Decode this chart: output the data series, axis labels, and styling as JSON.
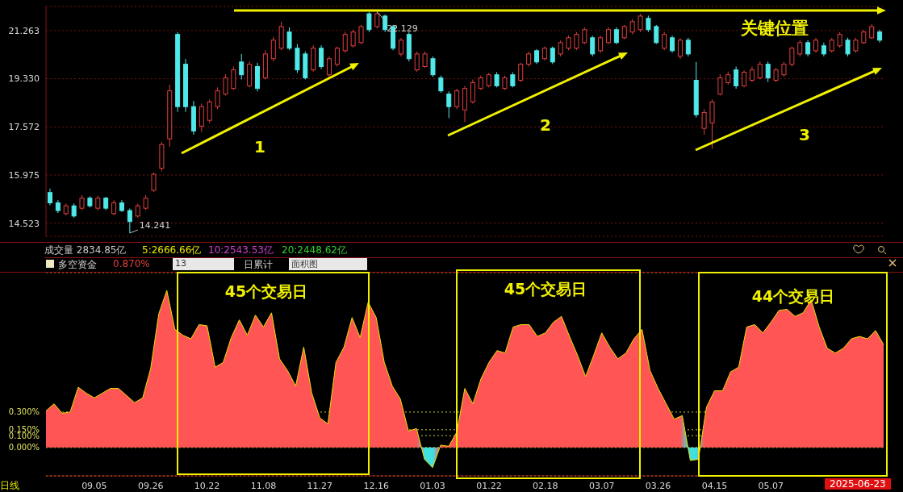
{
  "chart_data": [
    {
      "type": "candlestick",
      "log": true,
      "grid": "y",
      "tick_labels": "y",
      "ylim": [
        14.15,
        22.3
      ],
      "yticks": [
        14.523,
        15.975,
        17.572,
        {
          "value": 19.33,
          "label": "19.330"
        },
        21.263
      ],
      "categories": [
        null,
        null,
        null,
        null,
        null,
        null,
        null,
        null,
        null,
        null,
        null,
        null,
        null,
        null,
        null,
        null,
        null,
        null,
        null,
        null,
        null,
        null,
        null,
        null,
        null,
        null,
        null,
        null,
        null,
        null,
        null,
        null,
        null,
        null,
        null,
        null,
        null,
        null,
        null,
        null,
        null,
        null,
        null,
        null,
        null,
        null,
        null,
        null,
        null,
        null,
        null,
        null,
        null,
        null,
        null,
        null,
        null,
        null,
        null,
        null,
        null,
        null,
        null,
        null,
        null,
        null,
        null,
        null,
        null,
        null,
        null,
        null,
        null,
        null,
        null,
        null,
        null,
        null,
        null,
        null,
        null,
        null,
        null,
        null,
        null,
        null,
        null,
        null,
        null,
        null,
        null,
        null,
        null,
        null,
        null,
        null,
        null,
        null,
        null,
        null,
        null,
        null,
        null,
        null,
        null
      ],
      "ohlc": [
        [
          15.43,
          15.55,
          15.05,
          15.12
        ],
        [
          15.12,
          15.2,
          14.82,
          14.89
        ],
        [
          14.8,
          15.1,
          14.75,
          15.03
        ],
        [
          15.03,
          15.1,
          14.68,
          14.73
        ],
        [
          14.96,
          15.35,
          14.9,
          15.26
        ],
        [
          15.26,
          15.32,
          14.98,
          15.03
        ],
        [
          14.96,
          15.33,
          14.9,
          15.26
        ],
        [
          15.26,
          15.3,
          14.9,
          14.96
        ],
        [
          14.8,
          15.2,
          14.75,
          15.12
        ],
        [
          15.12,
          15.2,
          14.85,
          14.89
        ],
        [
          14.89,
          14.95,
          14.241,
          14.57
        ],
        [
          14.73,
          15.1,
          14.68,
          15.03
        ],
        [
          14.96,
          15.35,
          14.9,
          15.26
        ],
        [
          15.5,
          16.05,
          15.45,
          16.0
        ],
        [
          16.19,
          17.05,
          16.1,
          16.97
        ],
        [
          17.16,
          19.1,
          16.9,
          18.87
        ],
        [
          21.1,
          21.2,
          18.1,
          18.29
        ],
        [
          19.89,
          20.1,
          18.1,
          18.29
        ],
        [
          18.29,
          18.5,
          17.3,
          17.43
        ],
        [
          17.6,
          18.4,
          17.4,
          18.29
        ],
        [
          17.8,
          18.55,
          17.7,
          18.46
        ],
        [
          18.29,
          19.0,
          18.2,
          18.87
        ],
        [
          18.75,
          19.5,
          18.7,
          19.36
        ],
        [
          18.96,
          19.8,
          18.9,
          19.67
        ],
        [
          19.98,
          20.3,
          19.3,
          19.48
        ],
        [
          19.06,
          20.0,
          19.0,
          19.89
        ],
        [
          19.8,
          19.95,
          18.85,
          18.96
        ],
        [
          19.36,
          20.45,
          19.3,
          20.3
        ],
        [
          20.11,
          21.0,
          20.0,
          20.86
        ],
        [
          20.53,
          21.64,
          20.45,
          21.43
        ],
        [
          21.2,
          21.4,
          20.45,
          20.53
        ],
        [
          20.53,
          20.7,
          19.55,
          19.67
        ],
        [
          20.3,
          20.4,
          19.3,
          19.36
        ],
        [
          19.67,
          20.65,
          19.6,
          20.53
        ],
        [
          20.53,
          20.65,
          19.7,
          19.8
        ],
        [
          19.48,
          20.2,
          19.35,
          20.11
        ],
        [
          19.89,
          20.6,
          19.8,
          20.53
        ],
        [
          20.43,
          21.2,
          20.35,
          21.1
        ],
        [
          20.63,
          21.3,
          20.55,
          21.2
        ],
        [
          20.76,
          21.5,
          20.7,
          21.43
        ],
        [
          21.98,
          22.05,
          21.2,
          21.3
        ],
        [
          21.43,
          22.129,
          21.35,
          21.98
        ],
        [
          21.88,
          21.95,
          21.2,
          21.3
        ],
        [
          21.43,
          21.5,
          20.45,
          20.53
        ],
        [
          20.3,
          20.95,
          20.2,
          20.86
        ],
        [
          21.1,
          21.2,
          20.0,
          20.11
        ],
        [
          19.67,
          20.4,
          19.6,
          20.3
        ],
        [
          19.8,
          20.4,
          19.75,
          20.3
        ],
        [
          20.11,
          20.2,
          19.4,
          19.48
        ],
        [
          19.36,
          19.45,
          18.8,
          18.87
        ],
        [
          18.75,
          18.85,
          17.88,
          18.29
        ],
        [
          18.29,
          18.95,
          18.2,
          18.87
        ],
        [
          18.17,
          19.05,
          17.74,
          18.96
        ],
        [
          18.46,
          19.3,
          18.4,
          19.18
        ],
        [
          18.96,
          19.45,
          18.9,
          19.36
        ],
        [
          19.06,
          19.55,
          19.0,
          19.48
        ],
        [
          19.48,
          19.58,
          19.0,
          19.06
        ],
        [
          18.96,
          19.45,
          18.9,
          19.36
        ],
        [
          19.48,
          19.58,
          19.0,
          19.06
        ],
        [
          19.27,
          19.95,
          19.2,
          19.89
        ],
        [
          19.89,
          20.4,
          19.8,
          20.3
        ],
        [
          20.43,
          20.5,
          19.9,
          19.98
        ],
        [
          20.11,
          20.6,
          20.05,
          20.53
        ],
        [
          20.53,
          20.6,
          19.9,
          19.98
        ],
        [
          20.3,
          20.85,
          20.2,
          20.76
        ],
        [
          20.53,
          21.05,
          20.45,
          20.96
        ],
        [
          20.53,
          21.2,
          20.45,
          21.1
        ],
        [
          20.76,
          21.4,
          20.7,
          21.3
        ],
        [
          20.96,
          21.05,
          20.2,
          20.3
        ],
        [
          20.43,
          21.05,
          20.35,
          20.96
        ],
        [
          20.76,
          21.4,
          20.7,
          21.3
        ],
        [
          21.3,
          21.4,
          20.7,
          20.76
        ],
        [
          20.96,
          21.5,
          20.9,
          21.43
        ],
        [
          21.2,
          21.75,
          21.1,
          21.64
        ],
        [
          21.3,
          21.98,
          21.2,
          21.88
        ],
        [
          21.78,
          21.9,
          21.2,
          21.3
        ],
        [
          21.43,
          21.5,
          20.7,
          20.76
        ],
        [
          20.53,
          21.2,
          20.45,
          21.1
        ],
        [
          20.96,
          21.05,
          20.35,
          20.43
        ],
        [
          20.21,
          20.95,
          20.1,
          20.86
        ],
        [
          20.86,
          20.96,
          20.2,
          20.3
        ],
        [
          19.27,
          19.98,
          17.9,
          18.0
        ],
        [
          17.52,
          18.2,
          17.3,
          18.08
        ],
        [
          17.71,
          18.55,
          16.83,
          18.46
        ],
        [
          18.75,
          19.5,
          18.7,
          19.36
        ],
        [
          19.18,
          19.6,
          19.1,
          19.48
        ],
        [
          19.67,
          19.8,
          18.95,
          19.06
        ],
        [
          19.06,
          19.65,
          19.0,
          19.58
        ],
        [
          19.27,
          19.8,
          19.2,
          19.67
        ],
        [
          19.36,
          20.0,
          19.3,
          19.89
        ],
        [
          19.89,
          20.0,
          19.2,
          19.36
        ],
        [
          19.27,
          19.75,
          19.2,
          19.67
        ],
        [
          19.48,
          19.98,
          19.4,
          19.89
        ],
        [
          19.89,
          20.6,
          19.8,
          20.53
        ],
        [
          20.3,
          20.86,
          20.2,
          20.76
        ],
        [
          20.76,
          20.86,
          20.2,
          20.3
        ],
        [
          20.43,
          20.96,
          20.35,
          20.86
        ],
        [
          20.63,
          20.76,
          20.2,
          20.3
        ],
        [
          20.43,
          20.96,
          20.35,
          20.86
        ],
        [
          20.63,
          21.2,
          20.55,
          21.1
        ],
        [
          20.86,
          20.96,
          20.2,
          20.3
        ],
        [
          20.43,
          20.96,
          20.35,
          20.86
        ],
        [
          20.76,
          21.3,
          20.7,
          21.2
        ],
        [
          20.96,
          21.53,
          20.9,
          21.43
        ],
        [
          21.2,
          21.3,
          20.76,
          20.86
        ]
      ],
      "annotations": [
        "22.129",
        "14.241",
        "关键位置",
        "1",
        "2",
        "3"
      ]
    },
    {
      "type": "area",
      "grid": "y",
      "title": "多空资金",
      "subtitle": "0.870%",
      "ylim": [
        -0.24,
        1.48
      ],
      "yticks": [
        {
          "value": 0,
          "label": "0.000%"
        },
        {
          "value": 0.1,
          "label": "0.100%"
        },
        {
          "value": 0.15,
          "label": "0.150%"
        },
        {
          "value": 0.3,
          "label": "0.300%"
        }
      ],
      "categories": [
        null,
        null,
        null,
        null,
        null,
        null,
        "09.05",
        null,
        null,
        null,
        null,
        null,
        null,
        "09.26",
        null,
        null,
        null,
        null,
        null,
        null,
        "10.22",
        null,
        null,
        null,
        null,
        null,
        null,
        "11.08",
        null,
        null,
        null,
        null,
        null,
        null,
        "11.27",
        null,
        null,
        null,
        null,
        null,
        null,
        "12.16",
        null,
        null,
        null,
        null,
        null,
        null,
        "01.03",
        null,
        null,
        null,
        null,
        null,
        null,
        "01.22",
        null,
        null,
        null,
        null,
        null,
        null,
        "02.18",
        null,
        null,
        null,
        null,
        null,
        null,
        "03.07",
        null,
        null,
        null,
        null,
        null,
        null,
        "03.26",
        null,
        null,
        null,
        null,
        null,
        null,
        "04.15",
        null,
        null,
        null,
        null,
        null,
        null,
        "05.07",
        null,
        null,
        null,
        null,
        null,
        null,
        null,
        null,
        null,
        null,
        null,
        null,
        null,
        null
      ],
      "color": "#e8e000",
      "values": [
        0.31,
        0.37,
        0.29,
        0.3,
        0.51,
        0.46,
        0.42,
        0.46,
        0.5,
        0.5,
        0.44,
        0.38,
        0.42,
        0.67,
        1.13,
        1.33,
        1.0,
        0.95,
        0.92,
        1.04,
        1.03,
        0.68,
        0.72,
        0.93,
        1.08,
        0.95,
        1.12,
        1.02,
        1.14,
        0.75,
        0.65,
        0.52,
        0.85,
        0.46,
        0.25,
        0.2,
        0.72,
        0.85,
        1.1,
        0.93,
        1.23,
        1.1,
        0.72,
        0.52,
        0.41,
        0.14,
        0.16,
        -0.1,
        -0.17,
        0.02,
        0.01,
        0.13,
        0.5,
        0.37,
        0.58,
        0.72,
        0.82,
        0.8,
        1.02,
        1.04,
        1.04,
        0.94,
        0.97,
        1.06,
        1.11,
        0.94,
        0.78,
        0.6,
        0.78,
        0.97,
        0.85,
        0.75,
        0.8,
        0.92,
        1.0,
        0.65,
        0.5,
        0.37,
        0.24,
        0.27,
        -0.11,
        -0.1,
        0.34,
        0.48,
        0.48,
        0.64,
        0.68,
        1.02,
        1.04,
        0.97,
        1.06,
        1.16,
        1.17,
        1.11,
        1.14,
        1.25,
        1.02,
        0.84,
        0.8,
        0.84,
        0.92,
        0.94,
        0.92,
        0.99,
        0.87
      ],
      "colors": [
        "#ff5555",
        "#ff5555",
        "#ff5555",
        "#ff5555",
        "#ff5555",
        "#ff5555",
        "#ff5555",
        "#ff5555",
        "#ff5555",
        "#ff5555",
        "#ff5555",
        "#ff5555",
        "#ff5555",
        "#ff5555",
        "#ff5555",
        "#ff5555",
        "#ff5555",
        "#ff5555",
        "#ff5555",
        "#ff5555",
        "#ff5555",
        "#ff5555",
        "#ff5555",
        "#ff5555",
        "#ff5555",
        "#ff5555",
        "#ff5555",
        "#ff5555",
        "#ff5555",
        "#ff5555",
        "#ff5555",
        "#ff5555",
        "#ff5555",
        "#ff5555",
        "#ff5555",
        "#ff5555",
        "#ff5555",
        "#ff5555",
        "#ff5555",
        "#ff5555",
        "#ff5555",
        "#ff5555",
        "#ff5555",
        "#ff5555",
        "#ff5555",
        "#ff5555",
        "#ff5555",
        "#40e0e0",
        "#40e0e0",
        "#ff5555",
        "#ff5555",
        "#ff5555",
        "#ff5555",
        "#ff5555",
        "#ff5555",
        "#ff5555",
        "#ff5555",
        "#ff5555",
        "#ff5555",
        "#ff5555",
        "#ff5555",
        "#ff5555",
        "#ff5555",
        "#ff5555",
        "#ff5555",
        "#ff5555",
        "#ff5555",
        "#ff5555",
        "#ff5555",
        "#ff5555",
        "#ff5555",
        "#ff5555",
        "#ff5555",
        "#ff5555",
        "#ff5555",
        "#ff5555",
        "#ff5555",
        "#ff5555",
        "#ff5555",
        "#ff5555",
        "#40e0e0",
        "#40e0e0",
        "#ff5555",
        "#ff5555",
        "#ff5555",
        "#ff5555",
        "#ff5555",
        "#ff5555",
        "#ff5555",
        "#ff5555",
        "#ff5555",
        "#ff5555",
        "#ff5555",
        "#ff5555",
        "#ff5555",
        "#ff5555",
        "#ff5555",
        "#ff5555",
        "#ff5555",
        "#ff5555",
        "#ff5555",
        "#ff5555",
        "#ff5555",
        "#ff5555",
        "#ff5555"
      ],
      "annotations": [
        "成交量 2834.85亿",
        "5:2666.66亿",
        "10:2543.53亿",
        "20:2448.62亿",
        "13",
        "日累计",
        "面积图",
        "45个交易日",
        "45个交易日",
        "44个交易日",
        "日线",
        "2025-06-23"
      ]
    }
  ]
}
